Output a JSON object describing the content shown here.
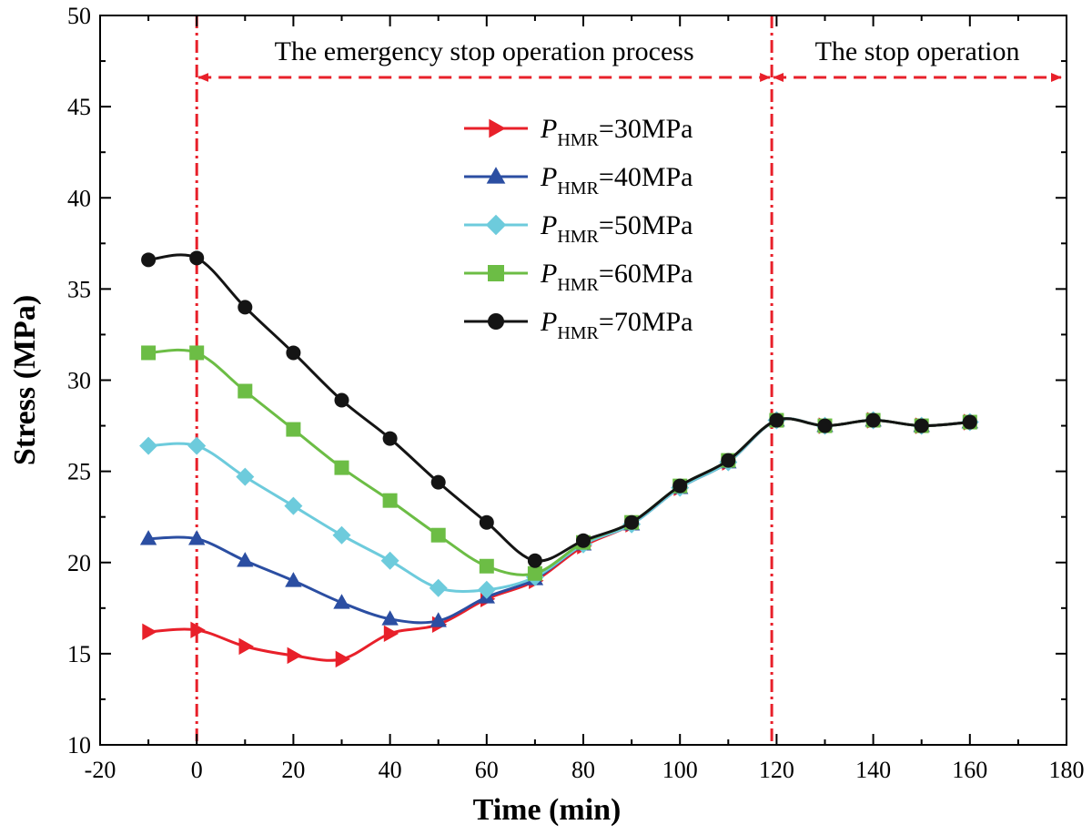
{
  "chart_data": {
    "type": "line",
    "title": "",
    "xlabel": "Time (min)",
    "ylabel": "Stress (MPa)",
    "xlim": [
      -20,
      180
    ],
    "ylim": [
      10,
      50
    ],
    "xticks": [
      -20,
      0,
      20,
      40,
      60,
      80,
      100,
      120,
      140,
      160,
      180
    ],
    "yticks": [
      10,
      15,
      20,
      25,
      30,
      35,
      40,
      45,
      50
    ],
    "grid": false,
    "legend_position": "top-center",
    "vertical_lines": [
      0,
      119
    ],
    "regions": [
      {
        "label": "The emergency stop operation process",
        "from": 0,
        "to": 119
      },
      {
        "label": "The stop operation",
        "from": 119,
        "to": 180
      }
    ],
    "x": [
      -10,
      0,
      10,
      20,
      30,
      40,
      50,
      60,
      70,
      80,
      90,
      100,
      110,
      120,
      130,
      140,
      150,
      160
    ],
    "series": [
      {
        "name": "P_HMR=30MPa",
        "legend_symbol": "P",
        "legend_subscript": "HMR",
        "legend_value": "=30MPa",
        "color": "#e8202a",
        "marker": "triangle-right",
        "values": [
          16.2,
          16.3,
          15.4,
          14.9,
          14.7,
          16.1,
          16.6,
          18.0,
          19.0,
          20.9,
          22.1,
          24.1,
          25.5,
          27.8,
          27.5,
          27.8,
          27.5,
          27.7
        ]
      },
      {
        "name": "P_HMR=40MPa",
        "legend_symbol": "P",
        "legend_subscript": "HMR",
        "legend_value": "=40MPa",
        "color": "#2b4ea2",
        "marker": "triangle-up",
        "values": [
          21.3,
          21.3,
          20.1,
          19.0,
          17.8,
          16.9,
          16.8,
          18.1,
          19.1,
          21.0,
          22.1,
          24.1,
          25.5,
          27.8,
          27.5,
          27.8,
          27.5,
          27.7
        ]
      },
      {
        "name": "P_HMR=50MPa",
        "legend_symbol": "P",
        "legend_subscript": "HMR",
        "legend_value": "=50MPa",
        "color": "#6dcbdc",
        "marker": "diamond",
        "values": [
          26.4,
          26.4,
          24.7,
          23.1,
          21.5,
          20.1,
          18.6,
          18.5,
          19.2,
          21.0,
          22.1,
          24.1,
          25.5,
          27.8,
          27.5,
          27.8,
          27.5,
          27.7
        ]
      },
      {
        "name": "P_HMR=60MPa",
        "legend_symbol": "P",
        "legend_subscript": "HMR",
        "legend_value": "=60MPa",
        "color": "#6cbd45",
        "marker": "square",
        "values": [
          31.5,
          31.5,
          29.4,
          27.3,
          25.2,
          23.4,
          21.5,
          19.8,
          19.4,
          21.1,
          22.2,
          24.2,
          25.6,
          27.8,
          27.5,
          27.8,
          27.5,
          27.7
        ]
      },
      {
        "name": "P_HMR=70MPa",
        "legend_symbol": "P",
        "legend_subscript": "HMR",
        "legend_value": "=70MPa",
        "color": "#141414",
        "marker": "circle",
        "values": [
          36.6,
          36.7,
          34.0,
          31.5,
          28.9,
          26.8,
          24.4,
          22.2,
          20.1,
          21.2,
          22.2,
          24.2,
          25.6,
          27.8,
          27.5,
          27.8,
          27.5,
          27.7
        ]
      }
    ]
  }
}
